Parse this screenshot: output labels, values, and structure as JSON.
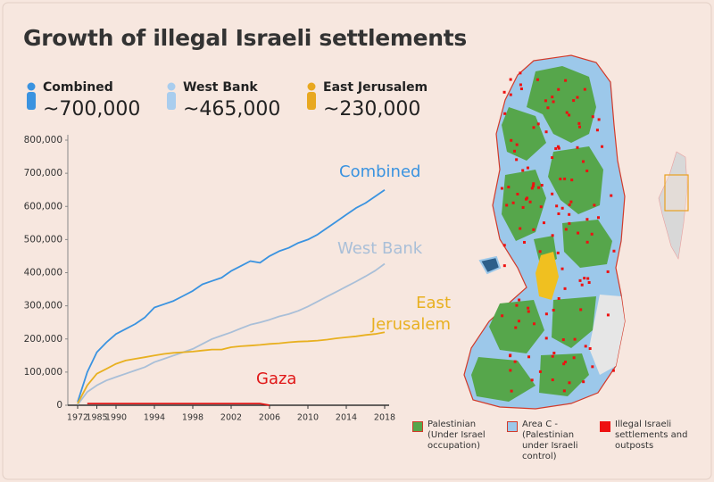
{
  "chart_data": {
    "type": "line",
    "title": "Growth of illegal Israeli settlements",
    "categories": [
      "1972",
      null,
      "1985",
      null,
      "1990",
      null,
      null,
      null,
      "1994",
      null,
      null,
      null,
      "1998",
      null,
      null,
      null,
      "2002",
      null,
      null,
      null,
      "2006",
      null,
      null,
      null,
      "2010",
      null,
      null,
      null,
      "2014",
      null,
      null,
      null,
      "2018"
    ],
    "ylim": [
      0,
      800000
    ],
    "yticks": [
      0,
      {
        "value": 100000,
        "label": "100,000"
      },
      {
        "value": 200000,
        "label": "200,000"
      },
      {
        "value": 300000,
        "label": "300,000"
      },
      {
        "value": 400000,
        "label": "400,000"
      },
      {
        "value": 500000,
        "label": "500,000"
      },
      {
        "value": 600000,
        "label": "600,000"
      },
      {
        "value": 700000,
        "label": "700,000"
      },
      {
        "value": 800000,
        "label": "800,000"
      }
    ],
    "series": [
      {
        "name": "Combined",
        "color": "#3a93e0",
        "values": [
          10000,
          100000,
          160000,
          190000,
          215000,
          230000,
          245000,
          265000,
          295000,
          305000,
          315000,
          330000,
          345000,
          365000,
          375000,
          385000,
          405000,
          420000,
          435000,
          430000,
          450000,
          465000,
          475000,
          490000,
          500000,
          515000,
          535000,
          555000,
          575000,
          595000,
          610000,
          630000,
          650000
        ]
      },
      {
        "name": "West Bank",
        "color": "#a9bfd8",
        "values": [
          2000,
          40000,
          60000,
          75000,
          85000,
          95000,
          105000,
          115000,
          130000,
          140000,
          150000,
          160000,
          170000,
          185000,
          200000,
          210000,
          220000,
          232000,
          243000,
          250000,
          258000,
          268000,
          275000,
          285000,
          298000,
          313000,
          328000,
          343000,
          358000,
          373000,
          389000,
          406000,
          427000
        ]
      },
      {
        "name": "East Jerusalem",
        "color": "#e8b020",
        "values": [
          5000,
          60000,
          95000,
          110000,
          125000,
          135000,
          140000,
          145000,
          150000,
          155000,
          158000,
          160000,
          162000,
          165000,
          168000,
          168000,
          175000,
          178000,
          180000,
          182000,
          185000,
          187000,
          190000,
          192000,
          193000,
          195000,
          198000,
          202000,
          205000,
          208000,
          212000,
          215000,
          220000
        ]
      },
      {
        "name": "Gaza",
        "color": "#e01818",
        "values": [
          null,
          5000,
          5000,
          5000,
          5000,
          5000,
          5000,
          5000,
          5000,
          5000,
          5000,
          5000,
          5000,
          5000,
          5000,
          5000,
          5000,
          5000,
          5000,
          5000,
          0,
          null,
          null,
          null,
          null,
          null,
          null,
          null,
          null,
          null,
          null,
          null,
          null
        ]
      }
    ]
  },
  "header": {
    "stats": [
      {
        "label": "Combined",
        "value": "~700,000",
        "color": "#3a93e0"
      },
      {
        "label": "West Bank",
        "value": "~465,000",
        "color": "#a9cdee"
      },
      {
        "label": "East Jerusalem",
        "value": "~230,000",
        "color": "#e8a820"
      }
    ]
  },
  "map_legend": [
    {
      "label": "Palestinian (Under Israel occupation)",
      "color": "#56a64b"
    },
    {
      "label": "Area C - (Palestinian under Israeli control)",
      "color": "#9cc8ea"
    },
    {
      "label": "Illegal Israeli settlements and outposts",
      "color": "#ee1111"
    }
  ]
}
